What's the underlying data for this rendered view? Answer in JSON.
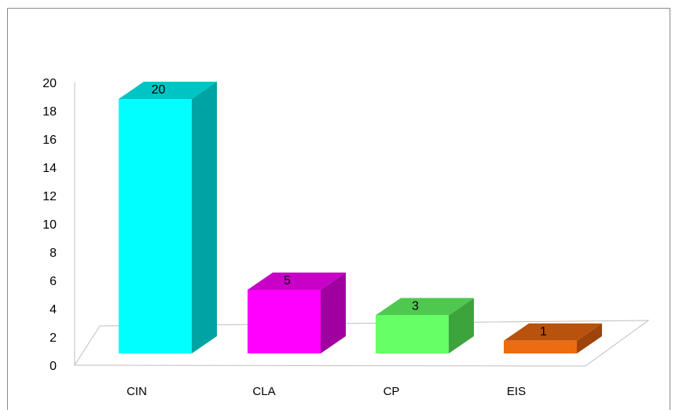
{
  "chart_data": {
    "type": "bar",
    "categories": [
      "CIN",
      "CLA",
      "CP",
      "EIS"
    ],
    "values": [
      20,
      5,
      3,
      1
    ],
    "data_labels": [
      "20",
      "5",
      "3",
      "1"
    ],
    "ylim": [
      0,
      20
    ],
    "ytick_labels": [
      "0",
      "2",
      "4",
      "6",
      "8",
      "10",
      "12",
      "14",
      "16",
      "18",
      "20"
    ],
    "grid": false,
    "legend": "none",
    "style": "3d-column",
    "colors": {
      "front": [
        "#00ffff",
        "#ff00ff",
        "#66ff66",
        "#ee6c10"
      ],
      "side": [
        "#00a3a3",
        "#a000a0",
        "#3da33d",
        "#9e430a"
      ],
      "top": [
        "#00c4c4",
        "#c800c8",
        "#4fc84f",
        "#b8520c"
      ],
      "axis": "#bfbfbf"
    }
  }
}
